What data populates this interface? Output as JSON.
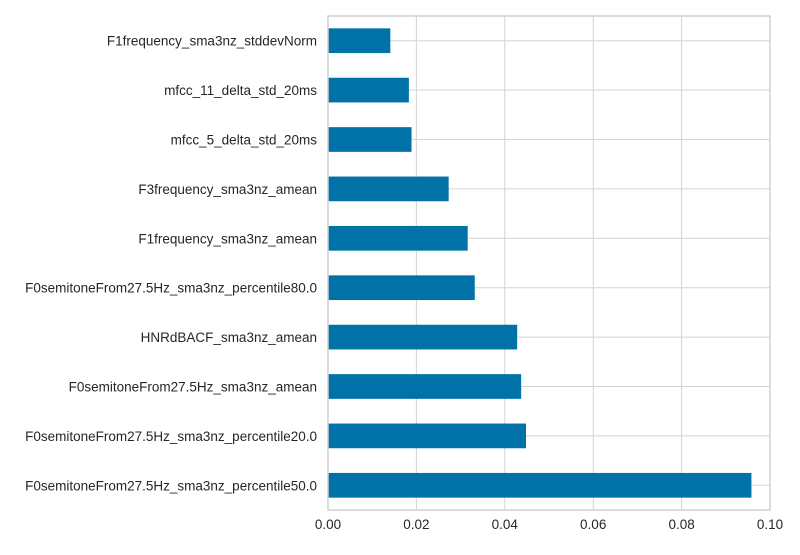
{
  "chart_data": {
    "type": "bar",
    "orientation": "horizontal",
    "categories": [
      "F1frequency_sma3nz_stddevNorm",
      "mfcc_11_delta_std_20ms",
      "mfcc_5_delta_std_20ms",
      "F3frequency_sma3nz_amean",
      "F1frequency_sma3nz_amean",
      "F0semitoneFrom27.5Hz_sma3nz_percentile80.0",
      "HNRdBACF_sma3nz_amean",
      "F0semitoneFrom27.5Hz_sma3nz_amean",
      "F0semitoneFrom27.5Hz_sma3nz_percentile20.0",
      "F0semitoneFrom27.5Hz_sma3nz_percentile50.0"
    ],
    "values": [
      0.0141,
      0.0183,
      0.0189,
      0.0273,
      0.0316,
      0.0332,
      0.0428,
      0.0437,
      0.0448,
      0.0958
    ],
    "xlim": [
      0,
      0.1
    ],
    "xticks": [
      "0.00",
      "0.02",
      "0.04",
      "0.06",
      "0.08",
      "0.10"
    ],
    "title": "",
    "xlabel": "",
    "ylabel": "",
    "grid": true,
    "bar_color": "#0072a7",
    "grid_color": "#d3d3d3",
    "frame_color": "#d0d0d0"
  }
}
